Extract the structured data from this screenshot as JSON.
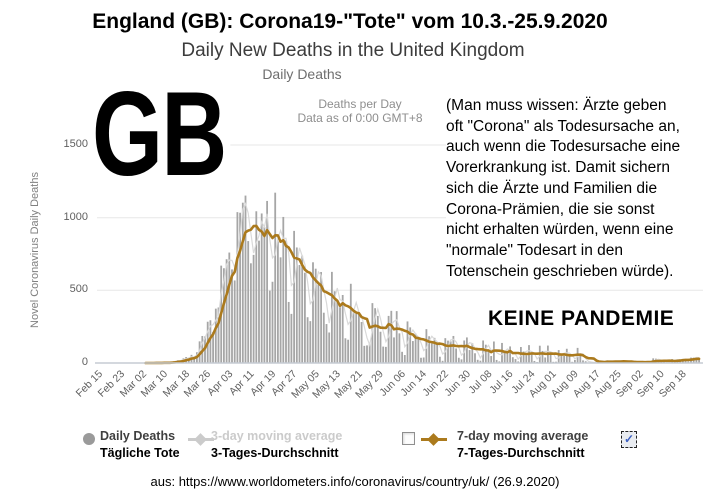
{
  "header": {
    "title": "England (GB): Corona19-\"Tote\" vom 10.3.-25.9.2020",
    "subtitle": "Daily New Deaths in the United Kingdom",
    "chart_title": "Daily Deaths",
    "meta_line1": "Deaths per Day",
    "meta_line2": "Data as of 0:00 GMT+8"
  },
  "overlays": {
    "country_code": "GB",
    "annotation": "(Man muss wissen: Ärzte geben\noft \"Corona\" als Todesursache an,\nauch wenn die Todesursache eine\nVorerkrankung ist. Damit sichern\nsich die Ärzte und Familien die\nCorona-Prämien, die sie sonst\nnicht erhalten würden, wenn eine\n\"normale\" Todesart in den\nTotenschein geschrieben würde).",
    "no_pandemic": "KEINE PANDEMIE"
  },
  "legend": {
    "items": [
      {
        "icon": "gray-circle",
        "label_en": "Daily Deaths",
        "label_de": "Tägliche Tote"
      },
      {
        "icon": "gray-diamond-line",
        "label_en": "3-day moving average",
        "label_de": "3-Tages-Durchschnitt"
      },
      {
        "icon": "checkbox-and-gold-diamond-line",
        "label_en": "7-day moving average",
        "label_de": "7-Tages-Durchschnitt"
      }
    ],
    "checkmark": "✓"
  },
  "footer": {
    "source": "aus: https://www.worldometers.info/coronavirus/country/uk/ (26.9.2020)"
  },
  "chart_data": {
    "type": "bar",
    "title": "Daily Deaths",
    "ylabel": "Novel Coronavirus Daily Deaths",
    "ylim": [
      0,
      1500
    ],
    "y_ticks": [
      0,
      500,
      1000,
      1500
    ],
    "grid": "horizontal",
    "x_start": "Feb 15",
    "x_end": "Sep 25",
    "x_tick_step_days": 8,
    "x_ticks": [
      "Feb 15",
      "Feb 23",
      "Mar 02",
      "Mar 10",
      "Mar 18",
      "Mar 26",
      "Apr 03",
      "Apr 11",
      "Apr 19",
      "Apr 27",
      "May 05",
      "May 13",
      "May 21",
      "May 29",
      "Jun 06",
      "Jun 14",
      "Jun 22",
      "Jun 30",
      "Jul 08",
      "Jul 16",
      "Jul 24",
      "Aug 01",
      "Aug 09",
      "Aug 17",
      "Aug 25",
      "Sep 02",
      "Sep 10",
      "Sep 18"
    ],
    "series": [
      {
        "name": "Daily Deaths",
        "type": "bar",
        "color": "#a6a6a6",
        "values": [
          0,
          0,
          0,
          0,
          0,
          0,
          0,
          0,
          0,
          0,
          0,
          0,
          0,
          0,
          0,
          0,
          0,
          0,
          0,
          1,
          1,
          0,
          2,
          0,
          2,
          2,
          2,
          2,
          10,
          14,
          20,
          16,
          32,
          41,
          33,
          56,
          35,
          74,
          149,
          186,
          183,
          284,
          294,
          214,
          374,
          382,
          670,
          652,
          714,
          760,
          644,
          568,
          1038,
          1034,
          1103,
          1152,
          839,
          686,
          744,
          1044,
          842,
          1029,
          935,
          1115,
          498,
          559,
          1172,
          837,
          727,
          1005,
          843,
          420,
          338,
          909,
          795,
          674,
          739,
          621,
          315,
          288,
          693,
          649,
          539,
          626,
          346,
          268,
          210,
          627,
          494,
          428,
          384,
          468,
          170,
          160,
          545,
          363,
          338,
          351,
          282,
          118,
          121,
          134,
          412,
          377,
          324,
          215,
          113,
          111,
          324,
          359,
          176,
          357,
          204,
          77,
          55,
          286,
          245,
          151,
          202,
          181,
          36,
          38,
          233,
          184,
          135,
          173,
          128,
          43,
          15,
          171,
          154,
          149,
          186,
          100,
          36,
          25,
          155,
          176,
          89,
          137,
          67,
          22,
          16,
          155,
          126,
          85,
          48,
          148,
          21,
          11,
          138,
          85,
          66,
          114,
          40,
          27,
          11,
          110,
          79,
          53,
          123,
          61,
          14,
          7,
          119,
          83,
          38,
          120,
          74,
          8,
          9,
          89,
          65,
          49,
          98,
          55,
          8,
          21,
          104,
          65,
          18,
          12,
          3,
          5,
          3,
          12,
          16,
          6,
          2,
          18,
          6,
          4,
          16,
          16,
          12,
          9,
          12,
          1,
          2,
          3,
          10,
          10,
          10,
          4,
          3,
          3,
          32,
          30,
          14,
          14,
          9,
          5,
          9,
          27,
          20,
          21,
          27,
          27,
          18,
          11,
          37,
          37,
          40,
          34
        ]
      },
      {
        "name": "3-day moving average",
        "type": "line",
        "color": "#d9d9d9",
        "derived_from": "Daily Deaths",
        "window": 3
      },
      {
        "name": "7-day moving average",
        "type": "line",
        "color": "#ab7a1d",
        "derived_from": "Daily Deaths",
        "window": 7
      }
    ],
    "colors": {
      "accent_line": "#ab7a1d",
      "bars": "#a6a6a6",
      "gridline": "#e7e7e7",
      "baseline": "#c5cbd3"
    }
  }
}
